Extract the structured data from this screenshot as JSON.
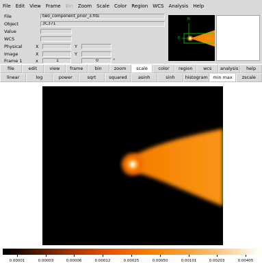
{
  "menu": [
    "File",
    "Edit",
    "View",
    "Frame",
    "Bin",
    "Zoom",
    "Scale",
    "Color",
    "Region",
    "WCS",
    "Analysis",
    "Help"
  ],
  "menu_disabled_index": 4,
  "info": {
    "file_label": "File",
    "file_value": "two_component_prior_3.fits",
    "object_label": "Object",
    "object_value": "3C371",
    "value_label": "Value",
    "wcs_label": "WCS",
    "physical_label": "Physical",
    "image_label": "Image",
    "frame_label": "Frame 1",
    "x_label": "X",
    "y_label": "Y",
    "zoom_label": "x",
    "zoom_value": "1",
    "angle_value": "0",
    "degree_symbol": "°"
  },
  "panner": {
    "north": "N",
    "east": "E"
  },
  "buttons": [
    "file",
    "edit",
    "view",
    "frame",
    "bin",
    "zoom",
    "scale",
    "color",
    "region",
    "wcs",
    "analysis",
    "help"
  ],
  "buttons_active_index": 6,
  "scale_buttons": [
    "linear",
    "log",
    "power",
    "sqrt",
    "squared",
    "asinh",
    "sinh",
    "histogram",
    "min max",
    "zscale"
  ],
  "scale_active_index": 8,
  "colorbar_ticks": [
    "0.00001",
    "0.00003",
    "0.00006",
    "0.00012",
    "0.00025",
    "0.00050",
    "0.00101",
    "0.00203",
    "0.00405"
  ]
}
